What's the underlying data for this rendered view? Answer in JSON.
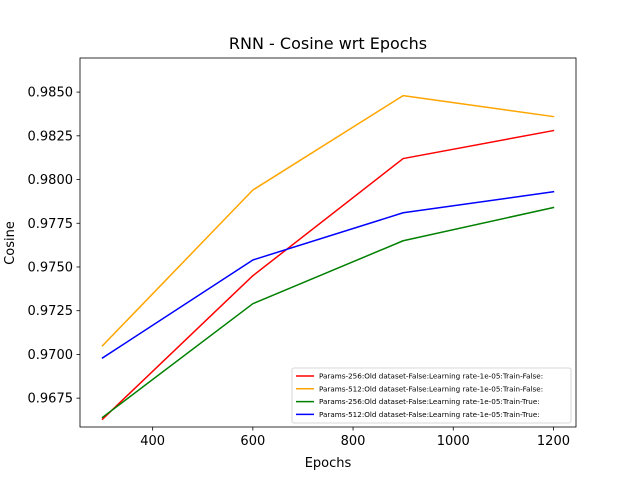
{
  "chart_data": {
    "type": "line",
    "title": "RNN - Cosine wrt Epochs",
    "xlabel": "Epochs",
    "ylabel": "Cosine",
    "x": [
      300,
      600,
      900,
      1200
    ],
    "xlim": [
      255,
      1245
    ],
    "ylim": [
      0.96585,
      0.98695
    ],
    "xticks": [
      400,
      600,
      800,
      1000,
      1200
    ],
    "yticks": [
      0.9675,
      0.97,
      0.9725,
      0.975,
      0.9775,
      0.98,
      0.9825,
      0.985
    ],
    "xtick_labels": [
      "400",
      "600",
      "800",
      "1000",
      "1200"
    ],
    "ytick_labels": [
      "0.9675",
      "0.9700",
      "0.9725",
      "0.9750",
      "0.9775",
      "0.9800",
      "0.9825",
      "0.9850"
    ],
    "grid": false,
    "legend_position": "lower right",
    "series": [
      {
        "name": "Params-256:Old dataset-False:Learning rate-1e-05:Train-False:",
        "color": "#ff0000",
        "values": [
          0.9663,
          0.9745,
          0.9812,
          0.9828
        ]
      },
      {
        "name": "Params-512:Old dataset-False:Learning rate-1e-05:Train-False:",
        "color": "#ffa500",
        "values": [
          0.9705,
          0.9794,
          0.9848,
          0.9836
        ]
      },
      {
        "name": "Params-256:Old dataset-False:Learning rate-1e-05:Train-True:",
        "color": "#008000",
        "values": [
          0.9664,
          0.9729,
          0.9765,
          0.9784
        ]
      },
      {
        "name": "Params-512:Old dataset-False:Learning rate-1e-05:Train-True:",
        "color": "#0000ff",
        "values": [
          0.9698,
          0.9754,
          0.9781,
          0.9793
        ]
      }
    ]
  }
}
